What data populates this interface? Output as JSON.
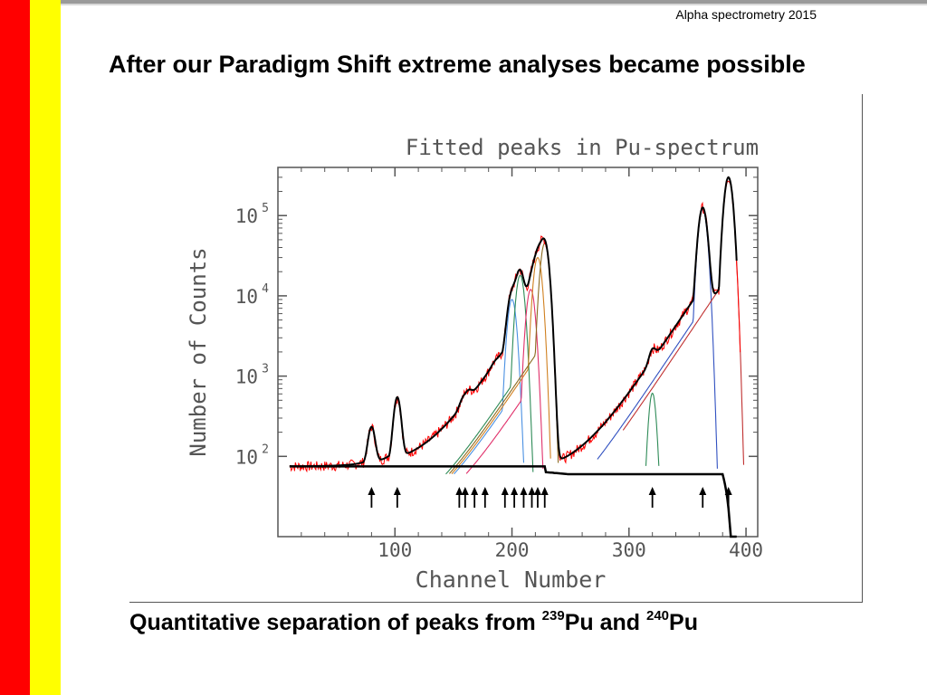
{
  "header": {
    "text": "Alpha spectrometry 2015"
  },
  "slide": {
    "title": "After our Paradigm Shift extreme analyses became possible"
  },
  "caption": {
    "prefix": "Quantitative separation of peaks from ",
    "iso1_mass": "239",
    "iso1_symbol": "Pu",
    "middle": " and ",
    "iso2_mass": "240",
    "iso2_symbol": "Pu"
  },
  "colors": {
    "red_bar": "#ff0000",
    "yellow_bar": "#ffff00",
    "data_curve": "#ff0000",
    "fit_curve": "#000000"
  },
  "chart_data": {
    "type": "line",
    "title": "Fitted peaks in Pu-spectrum",
    "xlabel": "Channel Number",
    "ylabel": "Number of Counts",
    "xlim": [
      0,
      410
    ],
    "ylim_log10": [
      1,
      5.6
    ],
    "y_scale": "log",
    "x_ticks": [
      100,
      200,
      300,
      400
    ],
    "x_tick_labels": [
      "100",
      "200",
      "300",
      "400"
    ],
    "y_ticks": [
      100,
      1000,
      10000,
      100000
    ],
    "y_tick_labels": [
      {
        "base": "10",
        "exp": "2"
      },
      {
        "base": "10",
        "exp": "3"
      },
      {
        "base": "10",
        "exp": "4"
      },
      {
        "base": "10",
        "exp": "5"
      }
    ],
    "peaks": [
      {
        "channel": 80,
        "height": 150,
        "color": "#000000"
      },
      {
        "channel": 102,
        "height": 450,
        "color": "#000000"
      },
      {
        "channel": 158,
        "height": 100,
        "color": "#a05050"
      },
      {
        "channel": 163,
        "height": 130,
        "color": "#a05050"
      },
      {
        "channel": 185,
        "height": 80,
        "color": "#a05050"
      },
      {
        "channel": 200,
        "height": 9000,
        "color": "#4a90e2"
      },
      {
        "channel": 207,
        "height": 18000,
        "color": "#2e8b57"
      },
      {
        "channel": 216,
        "height": 12000,
        "color": "#e0306a"
      },
      {
        "channel": 222,
        "height": 30000,
        "color": "#d08020"
      },
      {
        "channel": 228,
        "height": 45000,
        "color": "#8a6a20"
      },
      {
        "channel": 320,
        "height": 600,
        "color": "#2e8b57"
      },
      {
        "channel": 363,
        "height": 120000,
        "color": "#3050c0"
      },
      {
        "channel": 385,
        "height": 300000,
        "color": "#c03030"
      }
    ],
    "baseline": 75,
    "arrows_channels": [
      80,
      102,
      155,
      160,
      168,
      177,
      194,
      202,
      210,
      217,
      222,
      228,
      320,
      363,
      385
    ],
    "series": [
      {
        "name": "",
        "color": "#ff0000"
      },
      {
        "name": "",
        "color": "#000000"
      }
    ]
  }
}
